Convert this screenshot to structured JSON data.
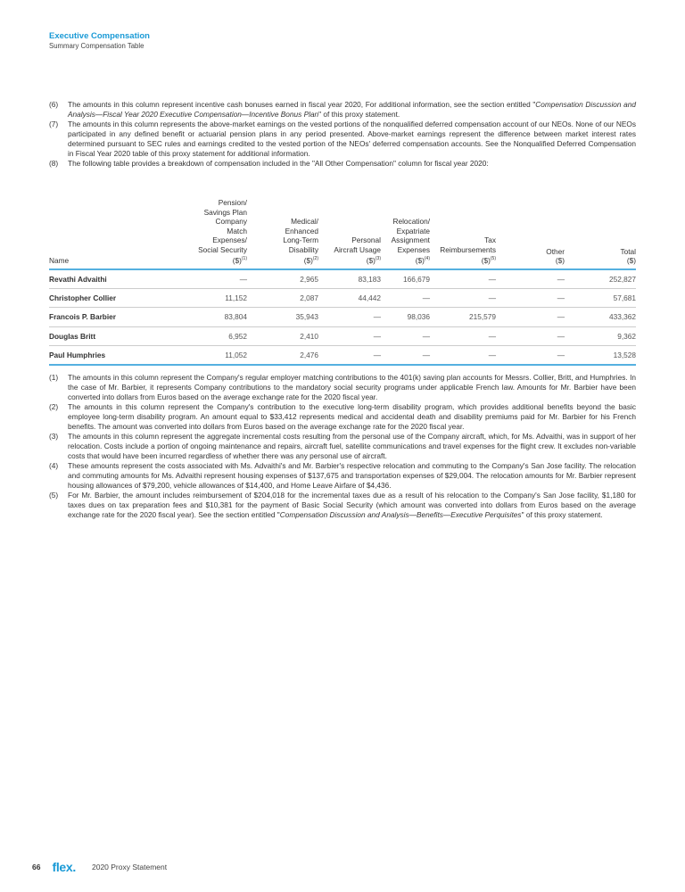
{
  "header": {
    "section": "Executive Compensation",
    "subsection": "Summary Compensation Table"
  },
  "top_notes": [
    {
      "num": "(6)",
      "parts": [
        {
          "t": "The amounts in this column represent incentive cash bonuses earned in fiscal year 2020, For additional information, see the section entitled \""
        },
        {
          "t": "Compensation Discussion and Analysis—Fiscal Year 2020 Executive Compensation—Incentive Bonus Plan",
          "i": true
        },
        {
          "t": "\" of this proxy statement."
        }
      ]
    },
    {
      "num": "(7)",
      "parts": [
        {
          "t": "The amounts in this column represents the above-market earnings on the vested portions of the nonqualified deferred compensation account of our NEOs. None of our NEOs participated in any defined benefit or actuarial pension plans in any period presented. Above-market earnings represent the difference between market interest rates determined pursuant to SEC rules and earnings credited to the vested portion of the NEOs' deferred compensation accounts. See the Nonqualified Deferred Compensation in Fiscal Year 2020 table of this proxy statement for additional information."
        }
      ]
    },
    {
      "num": "(8)",
      "parts": [
        {
          "t": "The following table provides a breakdown of compensation included in the \"All Other Compensation\" column for fiscal year 2020:"
        }
      ]
    }
  ],
  "table": {
    "columns": [
      {
        "label": "Name",
        "sup": ""
      },
      {
        "label": "Pension/\nSavings Plan\nCompany\nMatch\nExpenses/\nSocial Security\n($)",
        "sup": "(1)"
      },
      {
        "label": "Medical/\nEnhanced\nLong-Term\nDisability\n($)",
        "sup": "(2)"
      },
      {
        "label": "Personal\nAircraft Usage\n($)",
        "sup": "(3)"
      },
      {
        "label": "Relocation/\nExpatriate\nAssignment\nExpenses\n($)",
        "sup": "(4)"
      },
      {
        "label": "Tax\nReimbursements\n($)",
        "sup": "(5)"
      },
      {
        "label": "Other\n($)",
        "sup": ""
      },
      {
        "label": "Total\n($)",
        "sup": ""
      }
    ],
    "rows": [
      [
        "Revathi Advaithi",
        "—",
        "2,965",
        "83,183",
        "166,679",
        "—",
        "—",
        "252,827"
      ],
      [
        "Christopher Collier",
        "11,152",
        "2,087",
        "44,442",
        "—",
        "—",
        "—",
        "57,681"
      ],
      [
        "Francois P. Barbier",
        "83,804",
        "35,943",
        "—",
        "98,036",
        "215,579",
        "—",
        "433,362"
      ],
      [
        "Douglas Britt",
        "6,952",
        "2,410",
        "—",
        "—",
        "—",
        "—",
        "9,362"
      ],
      [
        "Paul Humphries",
        "11,052",
        "2,476",
        "—",
        "—",
        "—",
        "—",
        "13,528"
      ]
    ]
  },
  "bottom_notes": [
    {
      "num": "(1)",
      "parts": [
        {
          "t": "The amounts in this column represent the Company's regular employer matching contributions to the 401(k) saving plan accounts for Messrs. Collier, Britt, and Humphries. In the case of Mr. Barbier, it represents Company contributions to the mandatory social security programs under applicable French law. Amounts for Mr. Barbier have been converted into dollars from Euros based on the average exchange rate for the 2020 fiscal year."
        }
      ]
    },
    {
      "num": "(2)",
      "parts": [
        {
          "t": "The amounts in this column represent the Company's contribution to the executive long-term disability program, which provides additional benefits beyond the basic employee long-term disability program. An amount equal to $33,412 represents medical and accidental death and disability premiums paid for Mr. Barbier for his French benefits. The amount was converted into dollars from Euros based on the average exchange rate for the 2020 fiscal year."
        }
      ]
    },
    {
      "num": "(3)",
      "parts": [
        {
          "t": "The amounts in this column represent the aggregate incremental costs resulting from the personal use of the Company aircraft, which, for Ms. Advaithi, was in support of her relocation. Costs include a portion of ongoing maintenance and repairs, aircraft fuel, satellite communications and travel expenses for the flight crew. It excludes non-variable costs that would have been incurred regardless of whether there was any personal use of aircraft."
        }
      ]
    },
    {
      "num": "(4)",
      "parts": [
        {
          "t": "These amounts represent the costs associated with Ms. Advaithi's and Mr. Barbier's respective relocation and commuting to the Company's San Jose facility. The relocation and commuting amounts for Ms. Advaithi represent housing expenses of $137,675 and transportation expenses of $29,004. The relocation amounts for Mr. Barbier represent housing allowances of $79,200, vehicle allowances of $14,400, and Home Leave Airfare of $4,436."
        }
      ]
    },
    {
      "num": "(5)",
      "parts": [
        {
          "t": "For Mr. Barbier, the amount includes reimbursement of $204,018 for the incremental taxes due as a result of his relocation to the Company's San Jose facility, $1,180 for taxes dues on tax preparation fees and $10,381 for the payment of Basic Social Security (which amount was converted into dollars from Euros based on the average exchange rate for the 2020 fiscal year). See the section entitled \""
        },
        {
          "t": "Compensation Discussion and Analysis—Benefits—Executive Perquisites",
          "i": true
        },
        {
          "t": "\" of this proxy statement."
        }
      ]
    }
  ],
  "footer": {
    "page": "66",
    "logo": "flex.",
    "doc": "2020 Proxy Statement"
  },
  "colors": {
    "accent": "#1a9ad6",
    "rule": "#55b0e0"
  }
}
